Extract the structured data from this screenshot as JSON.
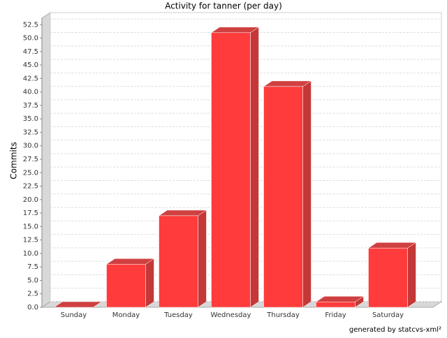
{
  "chart_data": {
    "type": "bar3d",
    "title": "Activity for tanner (per day)",
    "y_label": "Commits",
    "footer": "generated by statcvs-xml²",
    "categories": [
      "Sunday",
      "Monday",
      "Tuesday",
      "Wednesday",
      "Thursday",
      "Friday",
      "Saturday"
    ],
    "values": [
      0,
      8,
      17,
      51,
      41,
      1,
      11
    ],
    "color": "#ff3b3b",
    "ylim": [
      0,
      53.7
    ],
    "yticks": [
      {
        "value": 0,
        "label": "0.0"
      },
      2.5,
      {
        "value": 5,
        "label": "5.0"
      },
      7.5,
      {
        "value": 10,
        "label": "10.0"
      },
      12.5,
      {
        "value": 15,
        "label": "15.0"
      },
      17.5,
      {
        "value": 20,
        "label": "20.0"
      },
      22.5,
      {
        "value": 25,
        "label": "25.0"
      },
      27.5,
      {
        "value": 30,
        "label": "30.0"
      },
      32.5,
      {
        "value": 35,
        "label": "35.0"
      },
      37.5,
      {
        "value": 40,
        "label": "40.0"
      },
      42.5,
      {
        "value": 45,
        "label": "45.0"
      },
      47.5,
      {
        "value": 50,
        "label": "50.0"
      },
      52.5
    ],
    "grid": true
  }
}
